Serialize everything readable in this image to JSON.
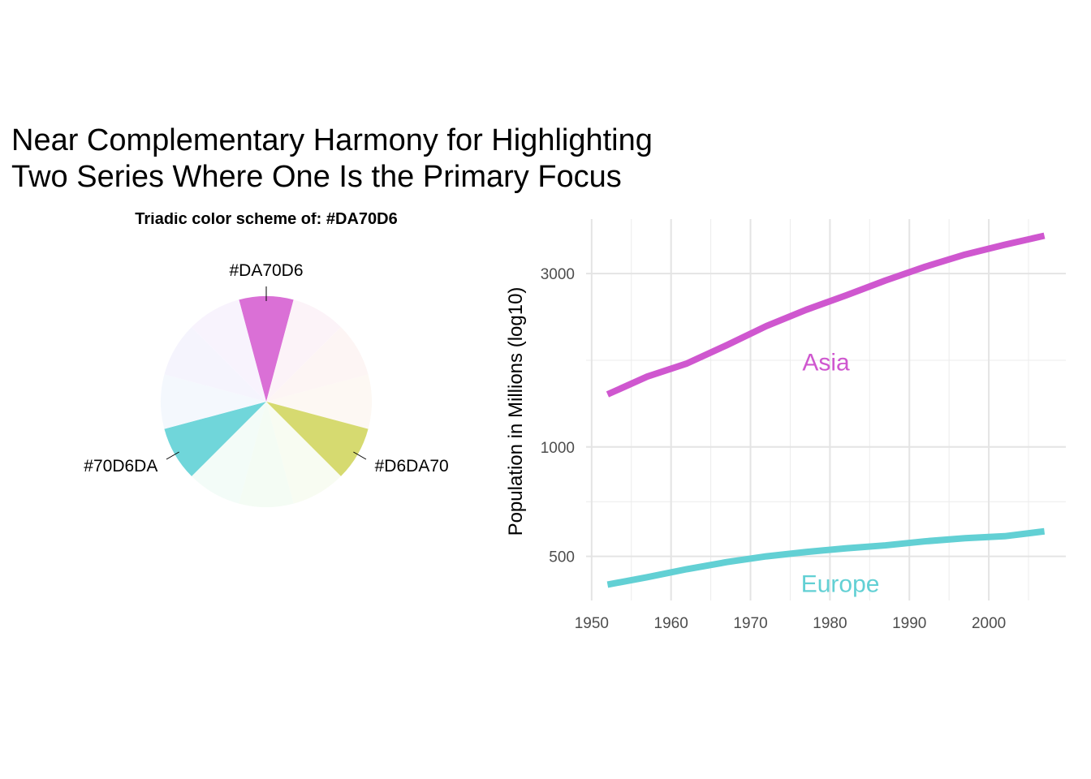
{
  "title": [
    "Near Complementary Harmony for Highlighting",
    "Two Series Where One Is the Primary Focus"
  ],
  "chart_data": [
    {
      "type": "pie",
      "title": "Triadic color scheme of:  #DA70D6",
      "categories": [
        "#DA70D6",
        null,
        null,
        null,
        "#D6DA70",
        null,
        null,
        null,
        "#70D6DA",
        null,
        null,
        null
      ],
      "values": [
        1,
        1,
        1,
        1,
        1,
        1,
        1,
        1,
        1,
        1,
        1,
        1
      ],
      "colors": [
        "#DA70D6",
        "#FCF3F8",
        "#FDF5F4",
        "#FDF8F3",
        "#D6DA70",
        "#F8FCF2",
        "#F4FCF4",
        "#F3FCF8",
        "#70D6DA",
        "#F4F8FD",
        "#F5F4FD",
        "#F8F3FD"
      ]
    },
    {
      "type": "line",
      "ylabel": "Population in Millions (log10)",
      "log_y": true,
      "grid": true,
      "x": [
        1952,
        1957,
        1962,
        1967,
        1972,
        1977,
        1982,
        1987,
        1992,
        1997,
        2002,
        2007
      ],
      "series": [
        {
          "name": "Asia",
          "color": "#CF57CF",
          "values": [
            1395,
            1562,
            1697,
            1905,
            2151,
            2384,
            2611,
            2871,
            3133,
            3383,
            3601,
            3812
          ]
        },
        {
          "name": "Europe",
          "color": "#62D0D4",
          "values": [
            418,
            438,
            461,
            482,
            500,
            514,
            526,
            536,
            550,
            561,
            568,
            586
          ]
        }
      ],
      "annotations": [
        {
          "text": "Asia",
          "x": 1979.5,
          "y": 1700,
          "series": 0
        },
        {
          "text": "Europe",
          "x": 1981.3,
          "y": 418,
          "series": 1
        }
      ],
      "xlim": [
        1949.3,
        2009.7
      ],
      "xticks": [
        1950,
        1960,
        1970,
        1980,
        1990,
        2000
      ],
      "ylim": [
        378,
        4236
      ],
      "yticks": [
        500,
        1000,
        3000
      ]
    }
  ]
}
